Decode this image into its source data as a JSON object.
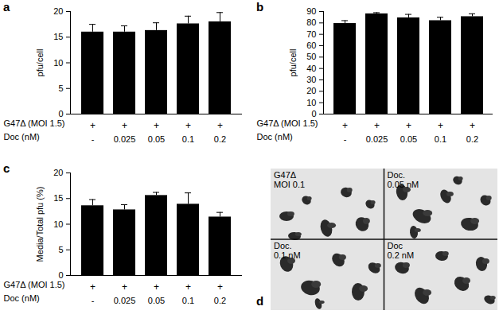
{
  "chart_data": [
    {
      "type": "bar",
      "title": "a",
      "ylabel": "pfu/cell",
      "condition_row": {
        "label": "G47Δ (MOI 1.5)",
        "values": [
          "+",
          "+",
          "+",
          "+",
          "+"
        ]
      },
      "xlabel": "Doc (nM)",
      "categories": [
        "-",
        "0.025",
        "0.05",
        "0.1",
        "0.2"
      ],
      "values": [
        16.0,
        16.0,
        16.3,
        17.6,
        18.0
      ],
      "errors": [
        1.5,
        1.2,
        1.5,
        1.5,
        1.8
      ],
      "color": "#000000",
      "ylim": [
        0,
        20
      ],
      "yticks": [
        0,
        5,
        10,
        15,
        20
      ]
    },
    {
      "type": "bar",
      "title": "b",
      "ylabel": "pfu/cell",
      "condition_row": {
        "label": "G47Δ (MOI 1.5)",
        "values": [
          "+",
          "+",
          "+",
          "+",
          "+"
        ]
      },
      "xlabel": "Doc (nM)",
      "categories": [
        "-",
        "0.025",
        "0.05",
        "0.1",
        "0.2"
      ],
      "values": [
        79.5,
        88.0,
        84.5,
        82.0,
        85.5
      ],
      "errors": [
        2.5,
        1.0,
        3.0,
        3.0,
        2.5
      ],
      "color": "#000000",
      "ylim": [
        0,
        90
      ],
      "yticks": [
        0,
        10,
        20,
        30,
        40,
        50,
        60,
        70,
        80,
        90
      ]
    },
    {
      "type": "bar",
      "title": "c",
      "ylabel": "Media/Total pfu (%)",
      "condition_row": {
        "label": "G47Δ (MOI 1.5)",
        "values": [
          "+",
          "+",
          "+",
          "+",
          "+"
        ]
      },
      "xlabel": "Doc (nM)",
      "categories": [
        "-",
        "0.025",
        "0.05",
        "0.1",
        "0.2"
      ],
      "values": [
        13.6,
        12.8,
        15.6,
        13.9,
        11.4
      ],
      "errors": [
        1.2,
        1.0,
        0.6,
        2.2,
        0.9
      ],
      "color": "#000000",
      "ylim": [
        0,
        20
      ],
      "yticks": [
        0,
        5,
        10,
        15,
        20
      ]
    }
  ],
  "image_panel": {
    "title": "d",
    "quadrants": [
      [
        "G47Δ",
        "MOI 0.1"
      ],
      [
        "Doc.",
        "0.05 nM"
      ],
      [
        "Doc.",
        "0.1 nM"
      ],
      [
        "Doc",
        "0.2 nM"
      ]
    ]
  }
}
